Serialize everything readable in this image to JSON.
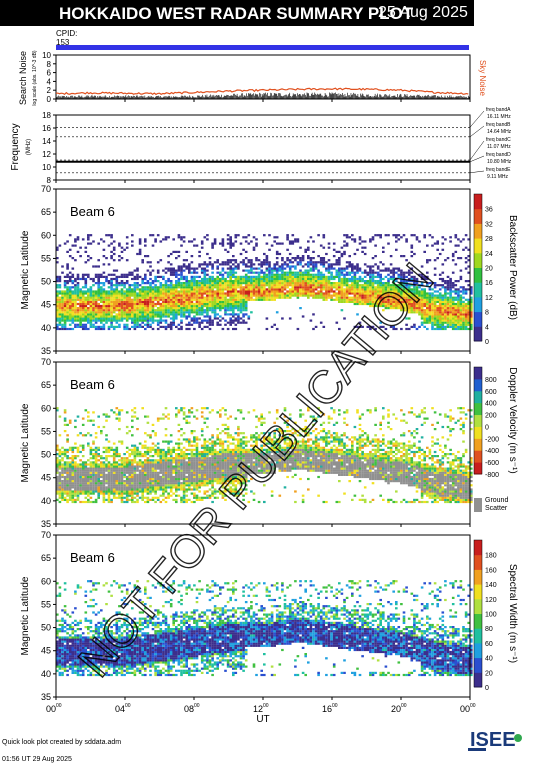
{
  "header": {
    "title": "HOKKAIDO WEST RADAR SUMMARY PLOT",
    "date": "25 Aug 2025",
    "cpid_label": "CPID:",
    "cpid_value": "153"
  },
  "watermark": "NOT FOR PUBLICATION",
  "footer": {
    "line1": "Quick look plot created by sddata.adm",
    "line2": "01:56 UT 29 Aug 2025"
  },
  "logo_text": "ISEE",
  "colors": {
    "cpid_bar": "#3232e6",
    "sky_noise": "#e0501e",
    "search_noise": "#000000",
    "ground_scatter": "#909090"
  },
  "chart_data": [
    {
      "type": "line",
      "panel": "noise",
      "ylabel": "Search Noise",
      "ylabel_sub": "log scale (abs. 10^-3 dB)",
      "legend": "Sky Noise",
      "ylim": [
        0,
        10
      ],
      "yticks": [
        "0",
        "2",
        "4",
        "6",
        "8",
        "10"
      ],
      "series": [
        {
          "name": "Sky Noise",
          "x": [
            0,
            2,
            4,
            6,
            8,
            10,
            12,
            14,
            16,
            18,
            20,
            22,
            24
          ],
          "values": [
            1.2,
            1.4,
            1.3,
            1.2,
            1.5,
            1.8,
            2.0,
            2.2,
            2.3,
            2.2,
            2.0,
            1.5,
            1.2
          ]
        },
        {
          "name": "Search Noise",
          "x": [
            0,
            2,
            4,
            6,
            8,
            10,
            12,
            14,
            16,
            18,
            20,
            22,
            24
          ],
          "values": [
            0.5,
            0.6,
            0.6,
            0.5,
            0.6,
            0.8,
            1.0,
            1.0,
            1.0,
            0.9,
            0.8,
            0.6,
            0.5
          ]
        }
      ]
    },
    {
      "type": "line",
      "panel": "frequency",
      "ylabel": "Frequency",
      "yunit": "(MHz)",
      "ylim": [
        8,
        18
      ],
      "yticks": [
        "8",
        "10",
        "12",
        "14",
        "16",
        "18"
      ],
      "freq_bands": [
        {
          "label": "freq bandA",
          "value_text": "16.11 MHz",
          "value": 16.11
        },
        {
          "label": "freq bandB",
          "value_text": "14.64 MHz",
          "value": 14.64
        },
        {
          "label": "freq bandC",
          "value_text": "11.07 MHz",
          "value": 11.07
        },
        {
          "label": "freq bandD",
          "value_text": "10.80 MHz",
          "value": 10.8
        },
        {
          "label": "freq bandE",
          "value_text": "9.11 MHz",
          "value": 9.11
        }
      ],
      "series": [
        {
          "name": "operating",
          "x": [
            0,
            24
          ],
          "values": [
            10.8,
            10.8
          ]
        }
      ]
    },
    {
      "type": "heatmap",
      "panel": "power",
      "beam_label": "Beam  6",
      "ylabel": "Magnetic Latitude",
      "ylim": [
        35,
        70
      ],
      "yticks": [
        "35",
        "40",
        "45",
        "50",
        "55",
        "60",
        "65",
        "70"
      ],
      "colorbar_label": "Backscatter Power (dB)",
      "colorbar_ticks": [
        "0",
        "4",
        "8",
        "12",
        "16",
        "20",
        "24",
        "28",
        "32",
        "36"
      ],
      "colorbar_range": [
        0,
        36
      ],
      "band_center_lat": [
        45,
        45,
        45,
        46,
        47,
        48,
        48,
        49,
        48,
        47,
        46,
        44,
        43
      ],
      "band_x": [
        0,
        2,
        4,
        6,
        8,
        10,
        12,
        14,
        16,
        18,
        20,
        22,
        24
      ]
    },
    {
      "type": "heatmap",
      "panel": "velocity",
      "beam_label": "Beam  6",
      "ylabel": "Magnetic Latitude",
      "ylim": [
        35,
        70
      ],
      "yticks": [
        "35",
        "40",
        "45",
        "50",
        "55",
        "60",
        "65",
        "70"
      ],
      "colorbar_label": "Doppler Velocity (m s⁻¹)",
      "colorbar_ticks": [
        "-800",
        "-600",
        "-400",
        "-200",
        "0",
        "200",
        "400",
        "600",
        "800"
      ],
      "colorbar_range": [
        -800,
        800
      ],
      "ground_scatter_label": [
        "Ground",
        "Scatter"
      ]
    },
    {
      "type": "heatmap",
      "panel": "width",
      "beam_label": "Beam  6",
      "ylabel": "Magnetic Latitude",
      "ylim": [
        35,
        70
      ],
      "yticks": [
        "35",
        "40",
        "45",
        "50",
        "55",
        "60",
        "65",
        "70"
      ],
      "colorbar_label": "Spectral Width (m s⁻¹)",
      "colorbar_ticks": [
        "0",
        "20",
        "40",
        "60",
        "80",
        "100",
        "120",
        "140",
        "160",
        "180"
      ],
      "colorbar_range": [
        0,
        180
      ]
    }
  ],
  "xaxis": {
    "label": "UT",
    "ticks": [
      {
        "hh": "00",
        "mm": "00",
        "value": 0
      },
      {
        "hh": "04",
        "mm": "00",
        "value": 4
      },
      {
        "hh": "08",
        "mm": "00",
        "value": 8
      },
      {
        "hh": "12",
        "mm": "00",
        "value": 12
      },
      {
        "hh": "16",
        "mm": "00",
        "value": 16
      },
      {
        "hh": "20",
        "mm": "00",
        "value": 20
      },
      {
        "hh": "00",
        "mm": "00",
        "value": 24
      }
    ]
  }
}
